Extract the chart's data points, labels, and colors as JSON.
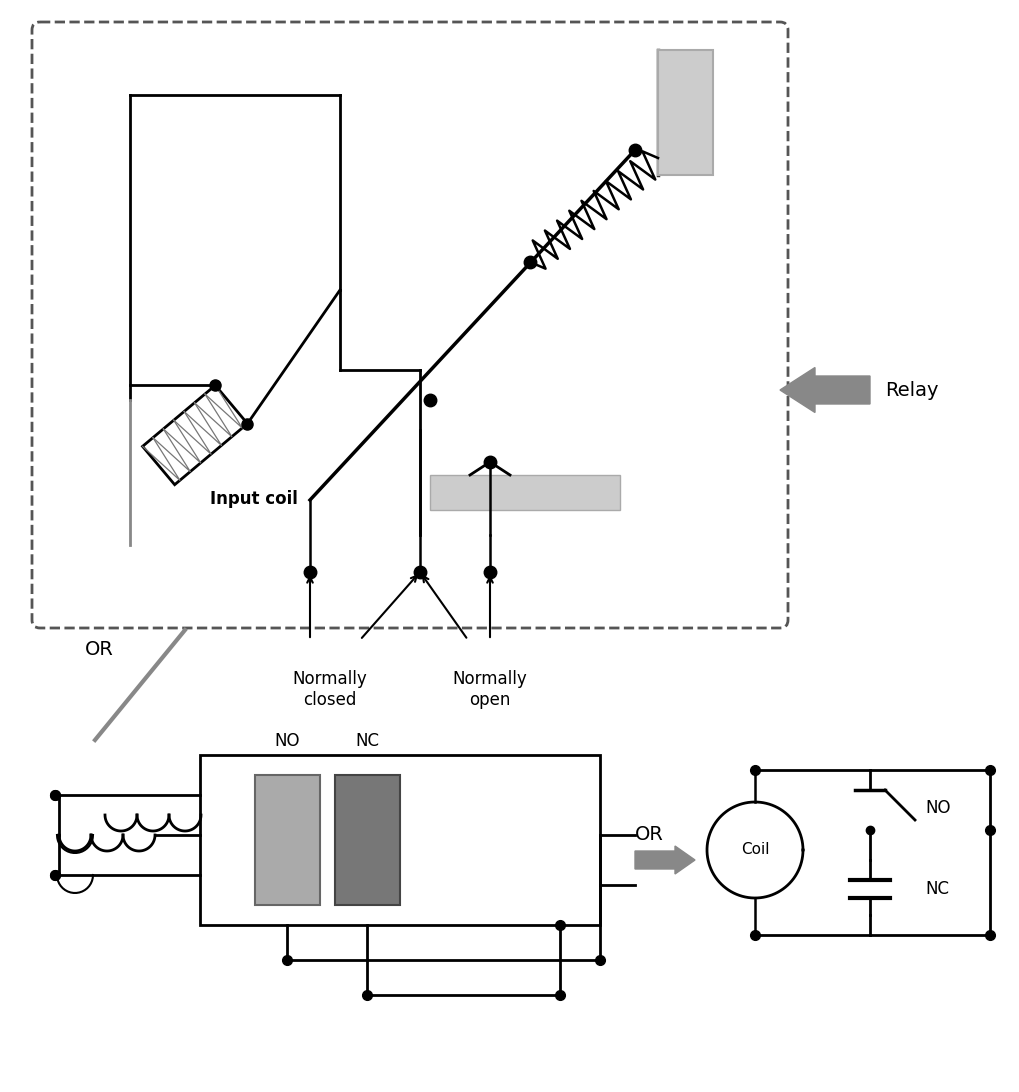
{
  "bg_color": "#ffffff",
  "relay_label": "Relay",
  "input_coil_label": "Input coil",
  "normally_closed_label": "Normally\nclosed",
  "normally_open_label": "Normally\nopen",
  "OR_label_top": "OR",
  "OR_label_bottom": "OR",
  "NO_label_bottom": "NO",
  "NC_label_bottom": "NC",
  "NO_label_right": "NO",
  "NC_label_right": "NC",
  "Coil_label": "Coil",
  "line_color": "#000000",
  "gray_color": "#888888",
  "mid_gray": "#999999",
  "light_gray": "#cccccc",
  "dark_gray": "#666666",
  "dot_size": 7,
  "lw": 1.8
}
